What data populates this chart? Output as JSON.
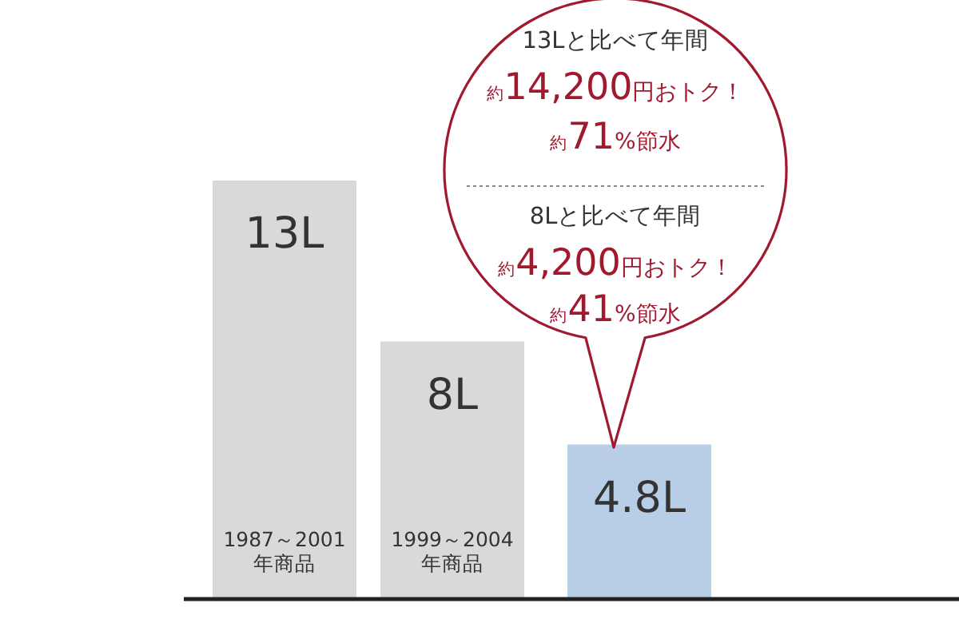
{
  "chart_data": {
    "type": "bar",
    "categories": [
      "1987～2001 年商品",
      "1999～2004 年商品",
      null
    ],
    "values": [
      13,
      8,
      4.8
    ],
    "colors": [
      "#d9d9d9",
      "#d9d9d9",
      "#b8cde6"
    ],
    "value_labels": [
      "13L",
      "8L",
      "4.8L"
    ],
    "annotations": [
      "13Lと比べて年間",
      "約14,200円おトク！",
      "約71%節水",
      "8Lと比べて年間",
      "約4,200円おトク！",
      "約41%節水"
    ]
  }
}
